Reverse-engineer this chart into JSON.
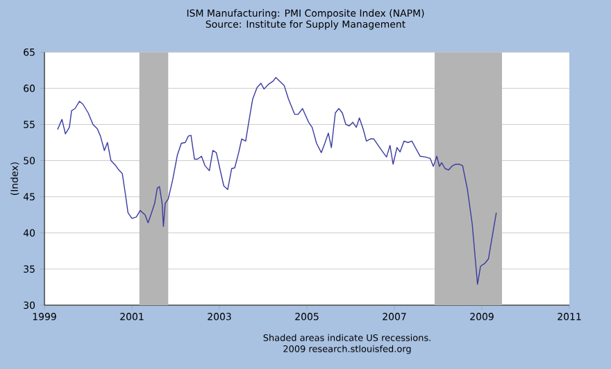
{
  "chart_data": {
    "type": "line",
    "title": "ISM Manufacturing: PMI Composite Index (NAPM)",
    "subtitle": "Source: Institute for Supply Management",
    "ylabel": "(Index)",
    "x": [
      1999.3,
      1999.4,
      1999.48,
      1999.57,
      1999.62,
      1999.7,
      1999.8,
      1999.88,
      2000.0,
      2000.11,
      2000.21,
      2000.28,
      2000.37,
      2000.44,
      2000.52,
      2000.63,
      2000.7,
      2000.78,
      2000.85,
      2000.91,
      2001.0,
      2001.1,
      2001.19,
      2001.3,
      2001.37,
      2001.45,
      2001.52,
      2001.58,
      2001.63,
      2001.69,
      2001.72,
      2001.76,
      2001.83,
      2001.93,
      2002.04,
      2002.13,
      2002.22,
      2002.29,
      2002.35,
      2002.43,
      2002.5,
      2002.59,
      2002.67,
      2002.77,
      2002.85,
      2002.93,
      2003.01,
      2003.1,
      2003.19,
      2003.28,
      2003.35,
      2003.44,
      2003.51,
      2003.6,
      2003.67,
      2003.76,
      2003.86,
      2003.95,
      2004.02,
      2004.13,
      2004.23,
      2004.29,
      2004.48,
      2004.58,
      2004.72,
      2004.8,
      2004.9,
      2005.04,
      2005.12,
      2005.22,
      2005.33,
      2005.41,
      2005.49,
      2005.56,
      2005.65,
      2005.73,
      2005.81,
      2005.89,
      2005.97,
      2006.05,
      2006.13,
      2006.2,
      2006.29,
      2006.36,
      2006.45,
      2006.53,
      2006.63,
      2006.71,
      2006.82,
      2006.9,
      2006.97,
      2007.06,
      2007.13,
      2007.22,
      2007.31,
      2007.4,
      2007.48,
      2007.59,
      2007.71,
      2007.82,
      2007.89,
      2007.97,
      2008.03,
      2008.08,
      2008.16,
      2008.24,
      2008.33,
      2008.4,
      2008.49,
      2008.56,
      2008.67,
      2008.78,
      2008.9,
      2008.97,
      2009.07,
      2009.15,
      2009.24,
      2009.33
    ],
    "series": [
      {
        "color": "#3a3aa0",
        "values": [
          54.3,
          55.7,
          53.7,
          54.6,
          56.9,
          57.2,
          58.2,
          57.8,
          56.6,
          55.0,
          54.4,
          53.4,
          51.4,
          52.5,
          50.0,
          49.3,
          48.7,
          48.2,
          45.4,
          42.8,
          42.0,
          42.2,
          43.1,
          42.5,
          41.4,
          42.8,
          44.1,
          46.2,
          46.4,
          44.1,
          40.9,
          44.1,
          44.7,
          47.3,
          50.8,
          52.4,
          52.5,
          53.4,
          53.5,
          50.2,
          50.2,
          50.6,
          49.3,
          48.6,
          51.4,
          51.1,
          48.9,
          46.5,
          46.0,
          48.9,
          49.0,
          51.1,
          53.0,
          52.7,
          55.3,
          58.5,
          60.1,
          60.7,
          59.9,
          60.6,
          61.0,
          61.5,
          60.4,
          58.5,
          56.4,
          56.4,
          57.2,
          55.3,
          54.6,
          52.4,
          51.1,
          52.4,
          53.8,
          51.8,
          56.6,
          57.2,
          56.6,
          55.0,
          54.8,
          55.3,
          54.6,
          55.9,
          54.3,
          52.7,
          53.0,
          53.0,
          52.1,
          51.4,
          50.5,
          52.1,
          49.5,
          51.8,
          51.2,
          52.7,
          52.5,
          52.7,
          51.8,
          50.6,
          50.5,
          50.3,
          49.2,
          50.6,
          49.2,
          49.7,
          48.9,
          48.7,
          49.3,
          49.5,
          49.5,
          49.3,
          46.0,
          41.2,
          32.9,
          35.4,
          35.8,
          36.4,
          39.6,
          42.8
        ]
      }
    ],
    "xlim": [
      1999,
      2011
    ],
    "xticks": [
      1999,
      2001,
      2003,
      2005,
      2007,
      2009,
      2011
    ],
    "ylim": [
      30,
      65
    ],
    "yticks": [
      30,
      35,
      40,
      45,
      50,
      55,
      60,
      65
    ],
    "grid": "y",
    "line_style": "solid",
    "bands": [
      {
        "axis": "x",
        "from": 2001.17,
        "to": 2001.83,
        "color": "#b4b4b4"
      },
      {
        "axis": "x",
        "from": 2007.92,
        "to": 2009.46,
        "color": "#b4b4b4"
      }
    ],
    "annotations": [
      "Shaded areas indicate US recessions.",
      "2009 research.stlouisfed.org"
    ]
  }
}
